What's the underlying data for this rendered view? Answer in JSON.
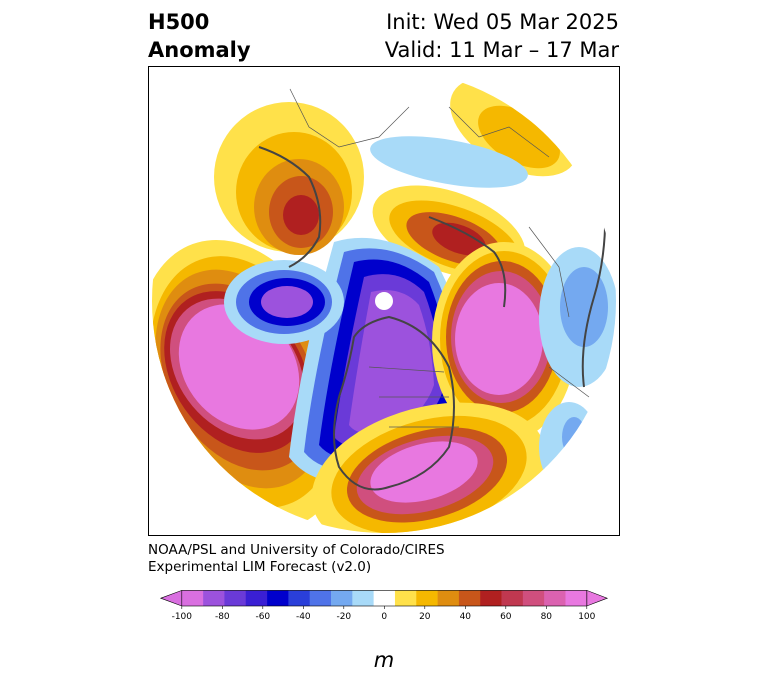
{
  "title": {
    "variable": "H500",
    "subtitle": "Anomaly",
    "init": "Init: Wed 05 Mar 2025",
    "valid": "Valid: 11 Mar – 17 Mar"
  },
  "credit": {
    "line1": "NOAA/PSL and University of Colorado/CIRES",
    "line2": "Experimental LIM Forecast (v2.0)"
  },
  "colorbar": {
    "label": "m",
    "ticks": [
      "-100",
      "-80",
      "-60",
      "-40",
      "-20",
      "0",
      "20",
      "40",
      "60",
      "80",
      "100"
    ],
    "levels": [
      -100,
      -90,
      -80,
      -70,
      -60,
      -50,
      -40,
      -30,
      -20,
      -10,
      10,
      20,
      30,
      40,
      50,
      60,
      70,
      80,
      90,
      100
    ],
    "colors": [
      "#d96fe0",
      "#9c52dd",
      "#6a3ad8",
      "#3a1fd4",
      "#0000cc",
      "#2a3fd9",
      "#4f73e8",
      "#74a9f0",
      "#a8daf8",
      "#ffffff",
      "#ffe14a",
      "#f5b800",
      "#df8d10",
      "#c8561a",
      "#b02020",
      "#c03850",
      "#d04f7e",
      "#db62b0",
      "#e878e0"
    ]
  },
  "anomaly_centers": [
    {
      "region": "northeast-pacific",
      "sign": "positive",
      "peak_m": 100
    },
    {
      "region": "canada-north-america",
      "sign": "negative",
      "peak_m": -100
    },
    {
      "region": "north-atlantic",
      "sign": "positive",
      "peak_m": 100
    },
    {
      "region": "southeast-us-atlantic",
      "sign": "positive",
      "peak_m": 100
    },
    {
      "region": "east-siberia",
      "sign": "positive",
      "peak_m": 70
    },
    {
      "region": "northern-europe",
      "sign": "positive",
      "peak_m": 70
    },
    {
      "region": "arctic-chukchi",
      "sign": "negative",
      "peak_m": -100
    }
  ]
}
